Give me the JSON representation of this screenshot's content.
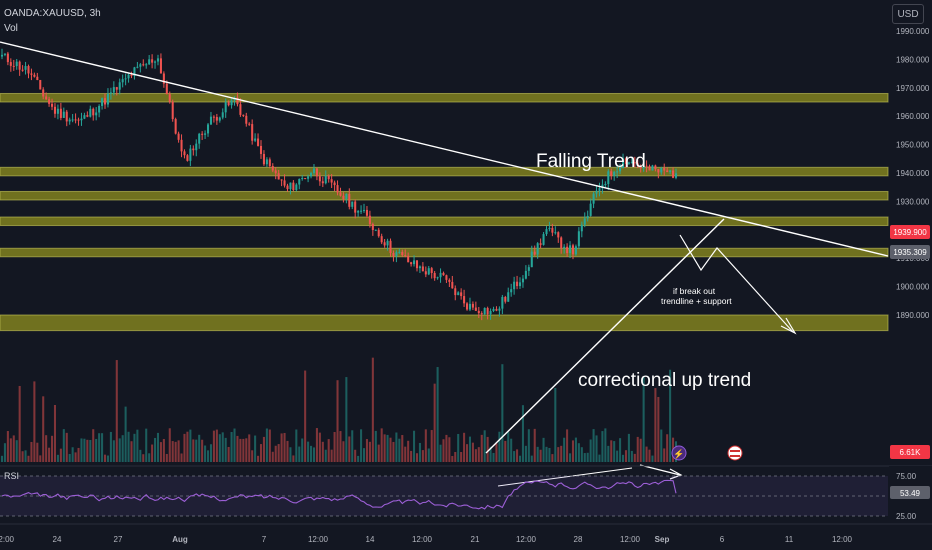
{
  "header": {
    "symbol": "OANDA:XAUUSD, 3h",
    "volume_label": "Vol",
    "currency": "USD"
  },
  "colors": {
    "background": "#131722",
    "up": "#26a69a",
    "down": "#ef5350",
    "zone": "#8a8a1f",
    "zone_border": "#c8c85a",
    "annotation": "#ffffff",
    "rsi_line": "#9c5fd6",
    "price_badge": "#f23645",
    "secondary_badge": "#5d606b",
    "volume_badge": "#f23645"
  },
  "annotations": {
    "falling_trend": "Falling Trend",
    "correctional": "correctional up trend",
    "breakout_line1": "if break out",
    "breakout_line2": "trendline + support"
  },
  "rsi": {
    "label": "RSI",
    "levels": [
      "75.00",
      "50.00",
      "25.00"
    ],
    "current_badge": "53.49"
  },
  "badges": {
    "last_price": "1939.900",
    "secondary_price": "1935.309",
    "volume": "6.61K"
  },
  "chart_data": {
    "type": "candlestick",
    "symbol": "OANDA:XAUUSD",
    "timeframe": "3h",
    "ylim": [
      1883,
      1995
    ],
    "y_ticks": [
      "1990.000",
      "1980.000",
      "1970.000",
      "1960.000",
      "1950.000",
      "1940.000",
      "1930.000",
      "1920.000",
      "1910.000",
      "1900.000",
      "1890.000"
    ],
    "x_ticks": [
      "12:00",
      "24",
      "27",
      "Aug",
      "7",
      "12:00",
      "14",
      "12:00",
      "21",
      "12:00",
      "28",
      "12:00",
      "Sep",
      "6",
      "11",
      "12:00"
    ],
    "close_path": [
      1981,
      1976,
      1962,
      1958,
      1966,
      1975,
      1981,
      1944,
      1958,
      1966,
      1946,
      1934,
      1941,
      1933,
      1925,
      1913,
      1907,
      1903,
      1893,
      1891,
      1903,
      1920,
      1912,
      1935,
      1945,
      1941,
      1939.9
    ],
    "support_zones": [
      {
        "low": 1965,
        "high": 1968
      },
      {
        "low": 1939,
        "high": 1942
      },
      {
        "low": 1930.5,
        "high": 1933.5
      },
      {
        "low": 1921.5,
        "high": 1924.5
      },
      {
        "low": 1910.5,
        "high": 1913.5
      },
      {
        "low": 1884.5,
        "high": 1890
      }
    ],
    "rsi_levels": [
      75,
      50,
      25
    ]
  }
}
